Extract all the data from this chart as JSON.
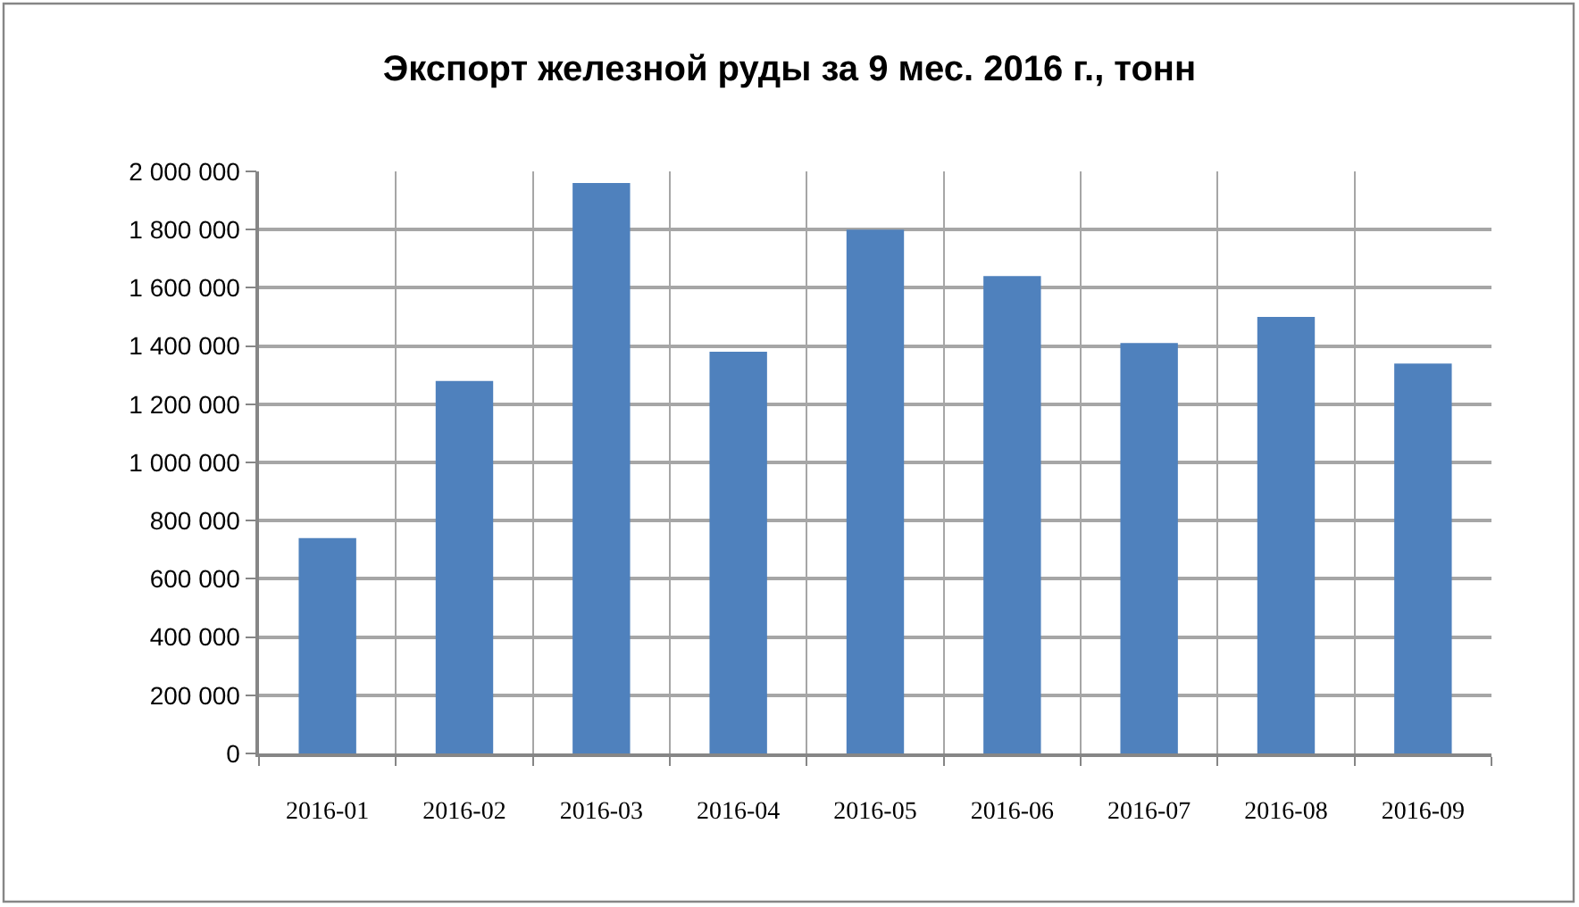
{
  "chart_data": {
    "type": "bar",
    "title": "Экспорт железной руды за 9 мес. 2016 г., тонн",
    "categories": [
      "2016-01",
      "2016-02",
      "2016-03",
      "2016-04",
      "2016-05",
      "2016-06",
      "2016-07",
      "2016-08",
      "2016-09"
    ],
    "values": [
      740000,
      1280000,
      1960000,
      1380000,
      1800000,
      1640000,
      1410000,
      1500000,
      1340000
    ],
    "color": "#4f81bd",
    "ylim": [
      0,
      2000000
    ],
    "yticks": [
      0,
      {
        "value": 200000,
        "label": "200 000"
      },
      {
        "value": 400000,
        "label": "400 000"
      },
      {
        "value": 600000,
        "label": "600 000"
      },
      {
        "value": 800000,
        "label": "800 000"
      },
      {
        "value": 1000000,
        "label": "1 000 000"
      },
      {
        "value": 1200000,
        "label": "1 200 000"
      },
      {
        "value": 1400000,
        "label": "1 400 000"
      },
      {
        "value": 1600000,
        "label": "1 600 000"
      },
      {
        "value": 1800000,
        "label": "1 800 000"
      },
      {
        "value": 2000000,
        "label": "2 000 000"
      }
    ],
    "grid": true
  }
}
